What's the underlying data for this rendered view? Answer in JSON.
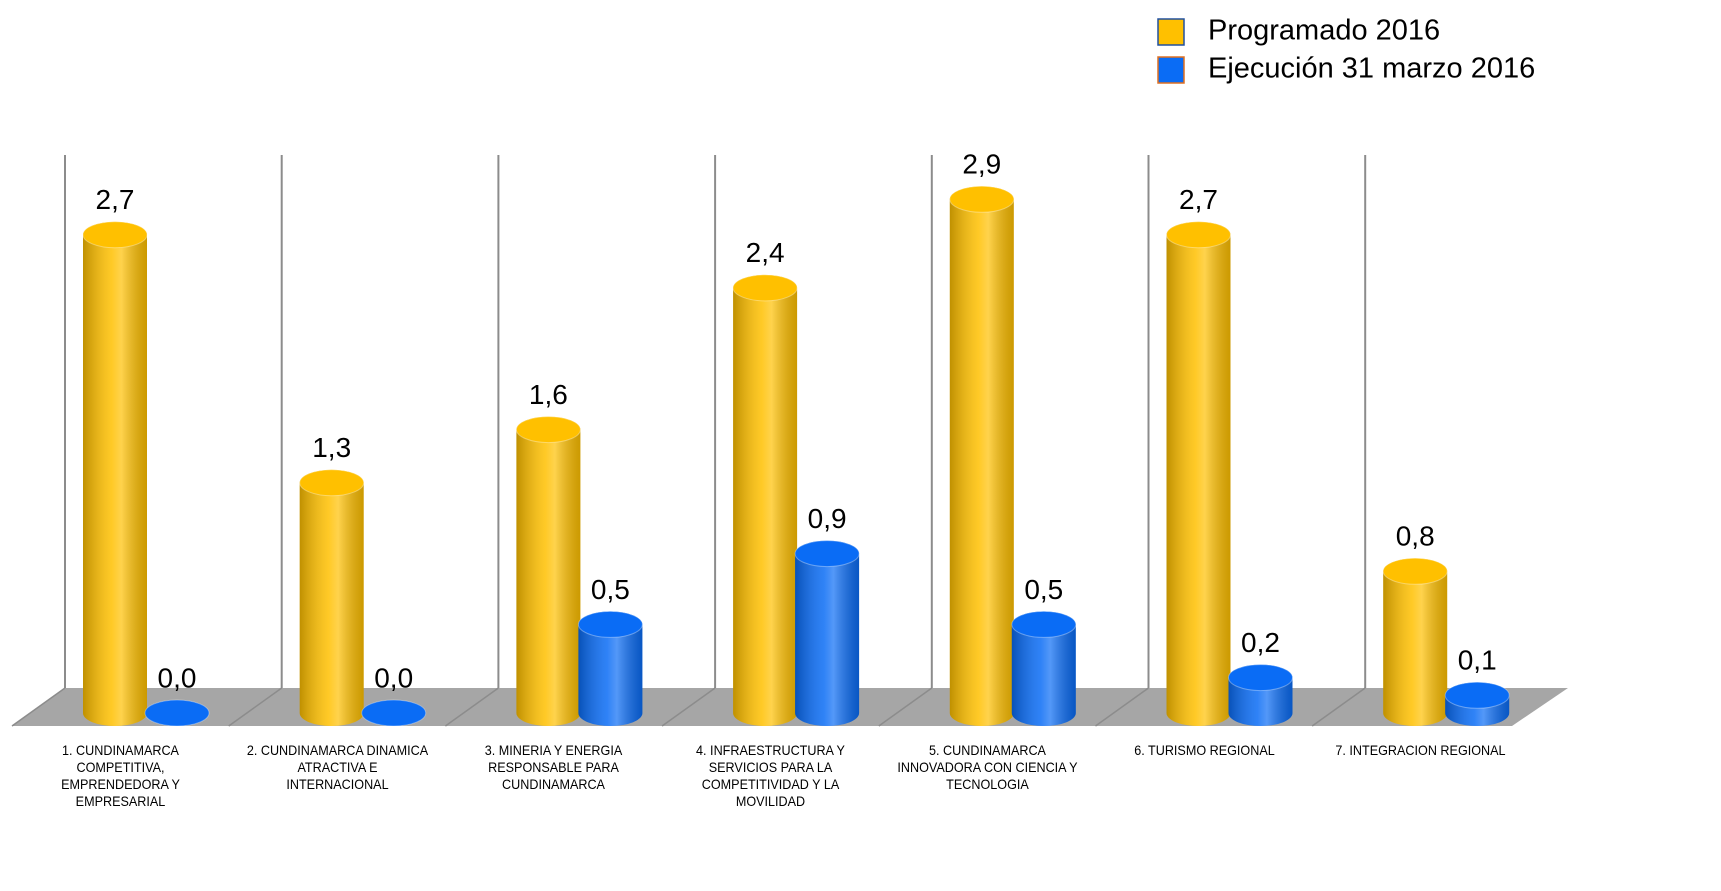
{
  "chart_data": {
    "type": "bar",
    "categories": [
      "1. CUNDINAMARCA COMPETITIVA, EMPRENDEDORA Y EMPRESARIAL",
      "2. CUNDINAMARCA DINAMICA ATRACTIVA E INTERNACIONAL",
      "3. MINERIA Y ENERGIA RESPONSABLE PARA CUNDINAMARCA",
      "4. INFRAESTRUCTURA Y SERVICIOS PARA LA COMPETITIVIDAD Y LA MOVILIDAD",
      "5. CUNDINAMARCA INNOVADORA CON CIENCIA Y TECNOLOGIA",
      "6. TURISMO REGIONAL",
      "7. INTEGRACION REGIONAL"
    ],
    "series": [
      {
        "name": "Programado 2016",
        "color": "#ffc000",
        "values": [
          2.7,
          1.3,
          1.6,
          2.4,
          2.9,
          2.7,
          0.8
        ],
        "value_labels": [
          "2,7",
          "1,3",
          "1,6",
          "2,4",
          "2,9",
          "2,7",
          "0,8"
        ]
      },
      {
        "name": "Ejecución 31 marzo 2016",
        "color": "#0a6cf5",
        "values": [
          0.0,
          0.0,
          0.5,
          0.9,
          0.5,
          0.2,
          0.1
        ],
        "value_labels": [
          "0,0",
          "0,0",
          "0,5",
          "0,9",
          "0,5",
          "0,2",
          "0,1"
        ]
      }
    ],
    "ylim": [
      0,
      3.15
    ],
    "legend": "top-right"
  }
}
